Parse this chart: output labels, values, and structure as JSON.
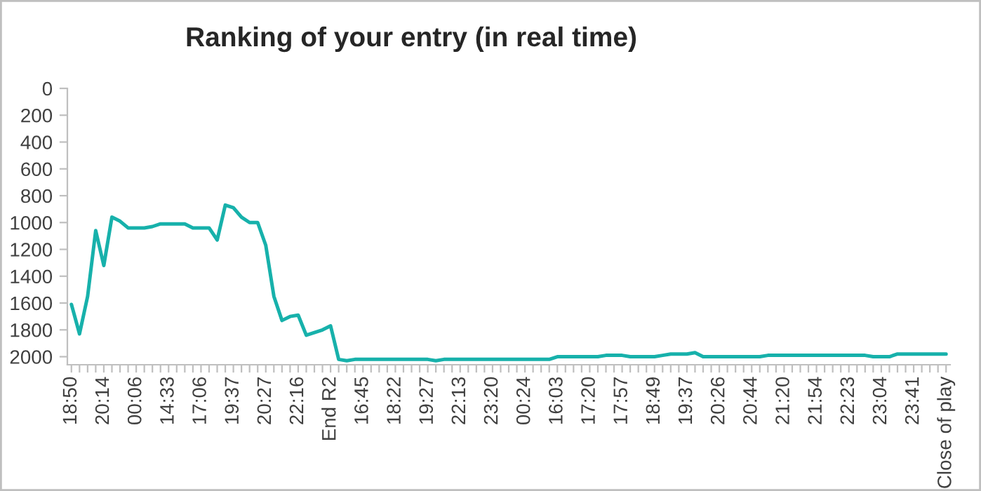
{
  "chart_data": {
    "type": "line",
    "title": "Ranking of your entry (in real time)",
    "categories": [
      "18:50",
      null,
      null,
      null,
      "20:14",
      null,
      null,
      null,
      "00:06",
      null,
      null,
      null,
      "14:33",
      null,
      null,
      null,
      "17:06",
      null,
      null,
      null,
      "19:37",
      null,
      null,
      null,
      "20:27",
      null,
      null,
      null,
      "22:16",
      null,
      null,
      null,
      "End R2",
      null,
      null,
      null,
      "16:45",
      null,
      null,
      null,
      "18:22",
      null,
      null,
      null,
      "19:27",
      null,
      null,
      null,
      "22:13",
      null,
      null,
      null,
      "23:20",
      null,
      null,
      null,
      "00:24",
      null,
      null,
      null,
      "16:03",
      null,
      null,
      null,
      "17:20",
      null,
      null,
      null,
      "17:57",
      null,
      null,
      null,
      "18:49",
      null,
      null,
      null,
      "19:37",
      null,
      null,
      null,
      "20:26",
      null,
      null,
      null,
      "20:44",
      null,
      null,
      null,
      "21:20",
      null,
      null,
      null,
      "21:54",
      null,
      null,
      null,
      "22:23",
      null,
      null,
      null,
      "23:04",
      null,
      null,
      null,
      "23:41",
      null,
      null,
      null,
      "Close of play"
    ],
    "series": [
      {
        "color": "#17b1ab",
        "values": [
          1610,
          1830,
          1550,
          1060,
          1320,
          960,
          990,
          1040,
          1040,
          1040,
          1030,
          1010,
          1010,
          1010,
          1010,
          1040,
          1040,
          1040,
          1130,
          870,
          890,
          960,
          1000,
          1000,
          1170,
          1550,
          1730,
          1700,
          1690,
          1840,
          1820,
          1800,
          1770,
          2020,
          2030,
          2020,
          2020,
          2020,
          2020,
          2020,
          2020,
          2020,
          2020,
          2020,
          2020,
          2030,
          2020,
          2020,
          2020,
          2020,
          2020,
          2020,
          2020,
          2020,
          2020,
          2020,
          2020,
          2020,
          2020,
          2020,
          2000,
          2000,
          2000,
          2000,
          2000,
          2000,
          1990,
          1990,
          1990,
          2000,
          2000,
          2000,
          2000,
          1990,
          1980,
          1980,
          1980,
          1970,
          2000,
          2000,
          2000,
          2000,
          2000,
          2000,
          2000,
          2000,
          1990,
          1990,
          1990,
          1990,
          1990,
          1990,
          1990,
          1990,
          1990,
          1990,
          1990,
          1990,
          1990,
          2000,
          2000,
          2000,
          1980,
          1980,
          1980,
          1980,
          1980,
          1980,
          1980
        ]
      }
    ],
    "ylim": [
      2060,
      0
    ],
    "yticks": [
      0,
      200,
      400,
      600,
      800,
      1000,
      1200,
      1400,
      1600,
      1800,
      2000
    ],
    "grid": false,
    "legend": false,
    "marker": "none",
    "line_style": "solid"
  }
}
